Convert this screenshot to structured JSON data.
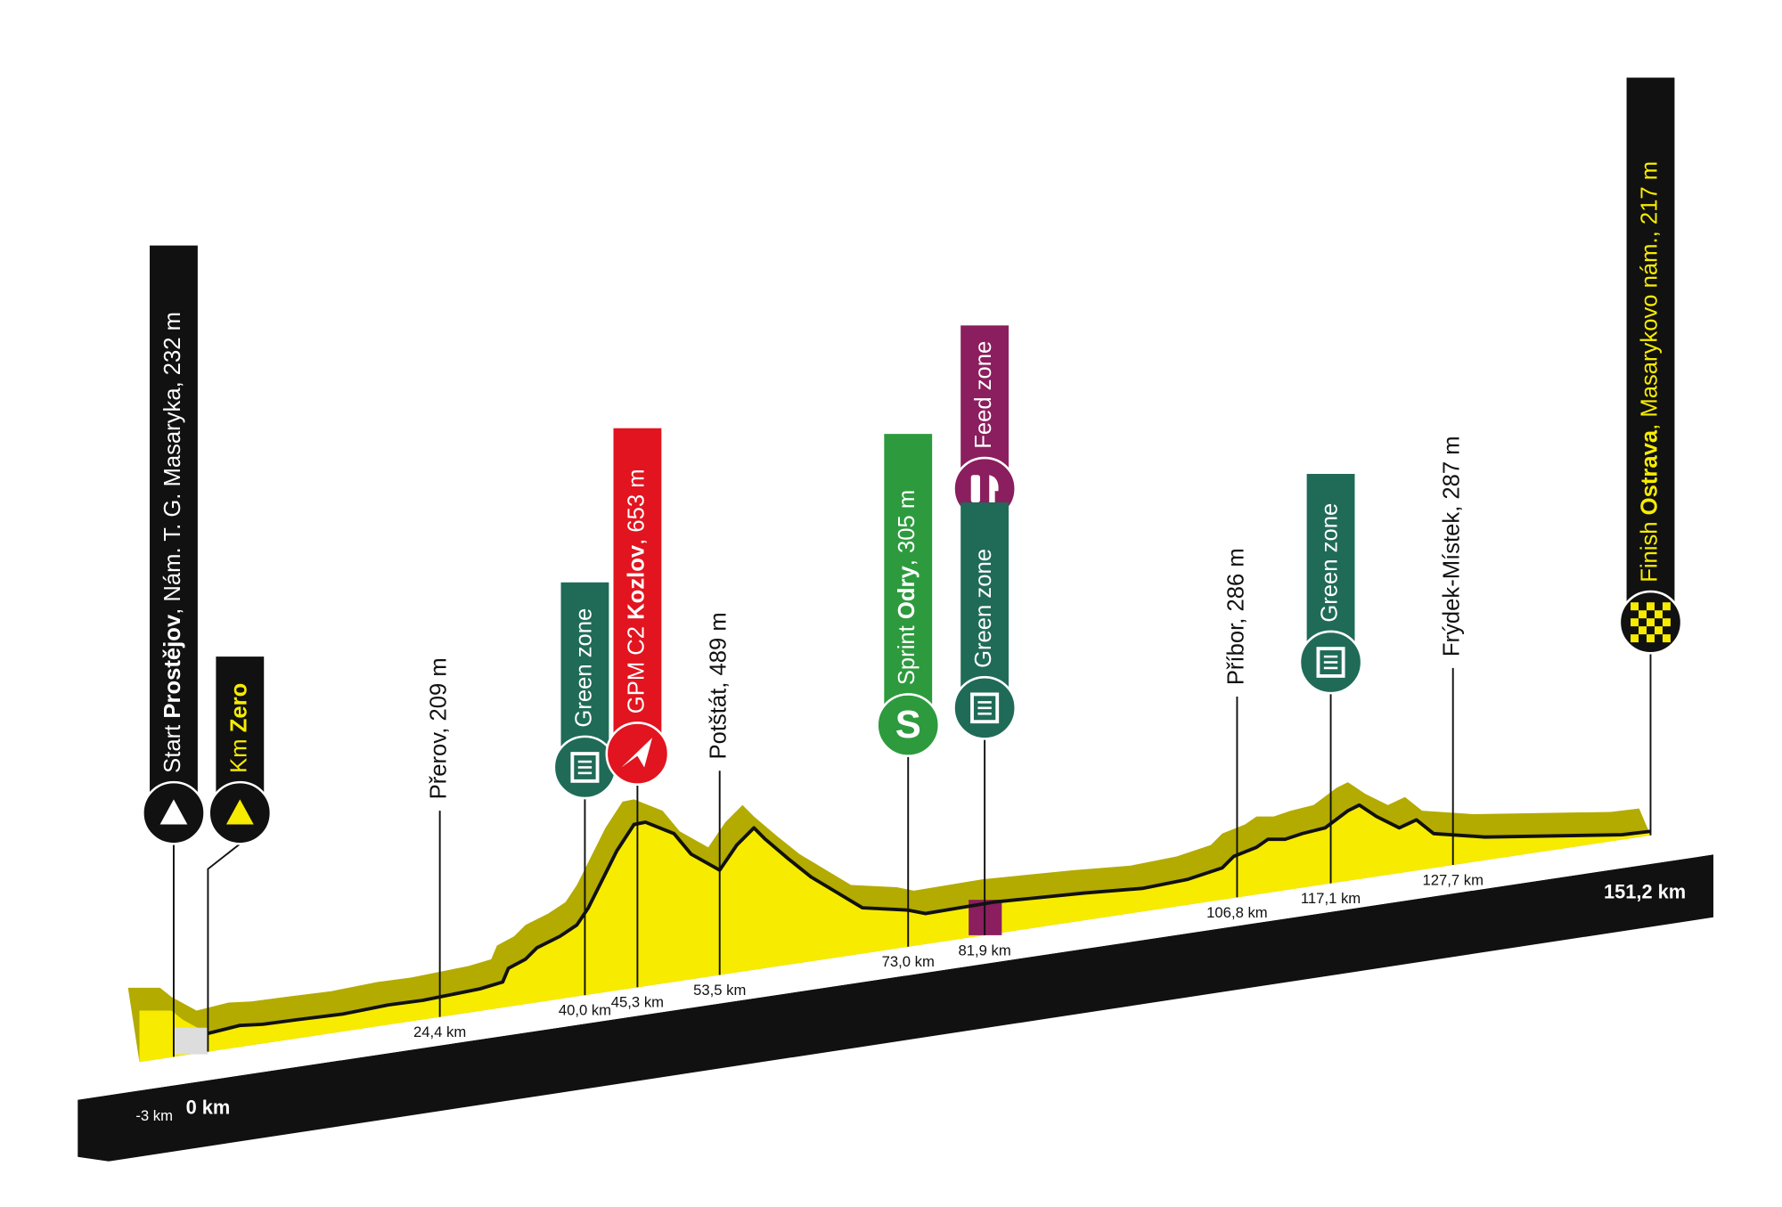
{
  "markers": [
    {
      "label_parts": [
        "Start ",
        "Prostějov",
        ", Nám. T. G. Masaryka, 232 m"
      ],
      "km": "-3 km"
    },
    {
      "label_parts": [
        "Km ",
        "Zero"
      ],
      "km": "0 km"
    },
    {
      "label_parts": [
        "Přerov, 209 m"
      ],
      "km": "24,4 km"
    },
    {
      "label_parts": [
        "Green zone"
      ],
      "km": "40,0 km"
    },
    {
      "label_parts": [
        "GPM C2 ",
        "Kozlov",
        ", 653 m"
      ],
      "km": "45,3 km"
    },
    {
      "label_parts": [
        "Potštát, 489 m"
      ],
      "km": "53,5 km"
    },
    {
      "label_parts": [
        "Sprint ",
        "Odry",
        ", 305 m"
      ],
      "km": "73,0 km"
    },
    {
      "label_parts": [
        "Feed zone"
      ]
    },
    {
      "label_parts": [
        "Green zone"
      ],
      "km": "81,9 km"
    },
    {
      "label_parts": [
        "Příbor, 286 m"
      ],
      "km": "106,8 km"
    },
    {
      "label_parts": [
        "Green zone"
      ],
      "km": "117,1 km"
    },
    {
      "label_parts": [
        "Frýdek-Místek, 287 m"
      ],
      "km": "127,7 km"
    },
    {
      "label_parts": [
        "Finish ",
        "Ostrava",
        ", Masarykovo nám., 217 m"
      ],
      "km": "151,2 km"
    }
  ]
}
